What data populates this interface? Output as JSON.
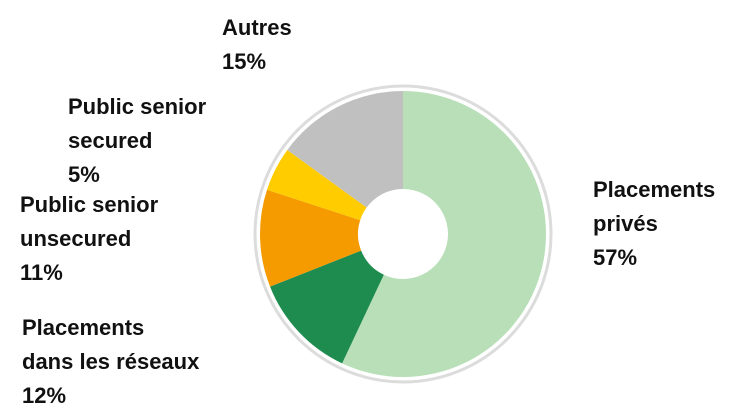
{
  "chart_data": {
    "type": "donut",
    "categories": [
      "Placements\nprivés",
      "Placements\ndans les réseaux",
      "Public senior\nunsecured",
      "Public senior\nsecured",
      "Autres"
    ],
    "values": [
      57,
      12,
      11,
      5,
      15
    ],
    "value_labels": [
      "57%",
      "12%",
      "11%",
      "5%",
      "15%"
    ],
    "colors": [
      "#b9dfb9",
      "#1e8c4e",
      "#f59b00",
      "#ffcc00",
      "#c0c0c0"
    ]
  }
}
